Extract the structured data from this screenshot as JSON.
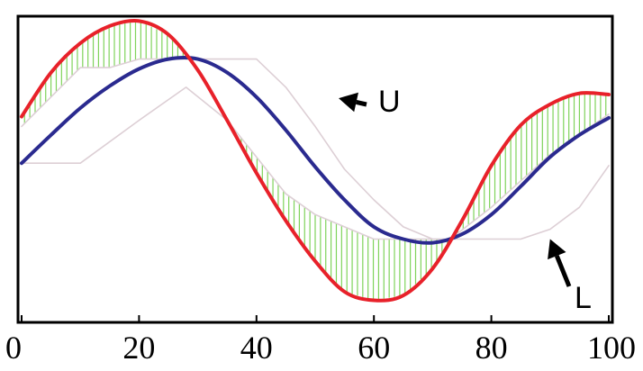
{
  "chart_data": {
    "type": "line",
    "title": "",
    "xlabel": "",
    "ylabel": "",
    "xlim": [
      0,
      100
    ],
    "ylim": [
      -1.3,
      1.2
    ],
    "x_ticks": [
      0,
      20,
      40,
      60,
      80,
      100
    ],
    "x_tick_labels": [
      "0",
      "20",
      "40",
      "60",
      "80",
      "100"
    ],
    "grid": false,
    "legend": "none",
    "series": [
      {
        "role": "red-curve",
        "color": "#e8212a",
        "x": [
          0,
          5,
          10,
          15,
          20,
          25,
          30,
          35,
          40,
          45,
          50,
          55,
          60,
          65,
          70,
          75,
          80,
          85,
          90,
          95,
          100
        ],
        "y": [
          0.38,
          0.74,
          0.98,
          1.12,
          1.16,
          1.05,
          0.76,
          0.35,
          -0.08,
          -0.47,
          -0.8,
          -1.05,
          -1.12,
          -1.08,
          -0.86,
          -0.47,
          -0.02,
          0.31,
          0.48,
          0.57,
          0.56
        ]
      },
      {
        "role": "blue-curve",
        "color": "#2a2a8f",
        "x": [
          0,
          5,
          10,
          15,
          20,
          25,
          30,
          35,
          40,
          45,
          50,
          55,
          60,
          65,
          70,
          75,
          80,
          85,
          90,
          95,
          100
        ],
        "y": [
          0.0,
          0.23,
          0.45,
          0.63,
          0.77,
          0.85,
          0.85,
          0.74,
          0.54,
          0.27,
          -0.03,
          -0.3,
          -0.52,
          -0.62,
          -0.65,
          -0.58,
          -0.42,
          -0.19,
          0.05,
          0.23,
          0.37
        ]
      },
      {
        "role": "upper-envelope-U",
        "color": "#ddcfd5",
        "x": [
          0,
          10,
          15,
          20,
          28,
          40,
          45,
          50,
          55,
          60,
          65,
          70,
          73,
          80,
          90,
          100
        ],
        "y": [
          0.3,
          0.78,
          0.78,
          0.85,
          0.85,
          0.85,
          0.62,
          0.3,
          -0.05,
          -0.3,
          -0.52,
          -0.62,
          -0.62,
          -0.36,
          0.07,
          0.4
        ]
      },
      {
        "role": "lower-envelope-L",
        "color": "#ddcfd5",
        "x": [
          0,
          10,
          20,
          28,
          35,
          40,
          45,
          50,
          55,
          60,
          70,
          78,
          85,
          90,
          95,
          100
        ],
        "y": [
          0.0,
          0.0,
          0.35,
          0.62,
          0.35,
          0.05,
          -0.25,
          -0.42,
          -0.52,
          -0.62,
          -0.62,
          -0.62,
          -0.62,
          -0.54,
          -0.36,
          -0.02
        ]
      }
    ],
    "annotations": [
      {
        "text": "U",
        "x": 60,
        "y": 0.92,
        "arrow_to": [
          54,
          0.53
        ]
      },
      {
        "text": "L",
        "x": 94,
        "y": -1.12,
        "arrow_to": [
          90,
          -0.62
        ]
      }
    ],
    "fill": {
      "style": "vertical-hatch",
      "color": "#7fd35a",
      "between": [
        "red-curve",
        "envelope"
      ]
    }
  }
}
